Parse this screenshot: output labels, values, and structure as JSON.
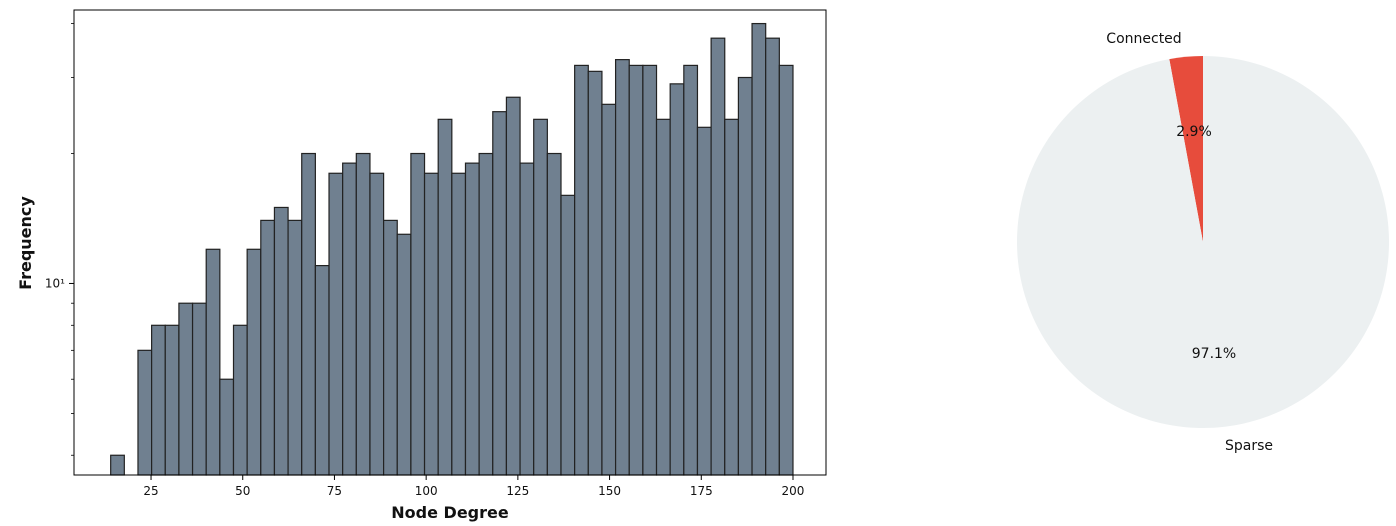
{
  "chart_data": [
    {
      "type": "bar",
      "xlabel": "Node Degree",
      "ylabel": "Frequency",
      "yscale": "log",
      "xlim": [
        4,
        209
      ],
      "ylim": [
        3.6,
        43
      ],
      "xticks": [
        25,
        50,
        75,
        100,
        125,
        150,
        175,
        200
      ],
      "xtick_labels": [
        "25",
        "50",
        "75",
        "100",
        "125",
        "150",
        "175",
        "200"
      ],
      "yticks": [
        10
      ],
      "ytick_labels": [
        "10¹"
      ],
      "bin_start": 14,
      "bin_width": 3.72,
      "values": [
        4,
        3,
        7,
        8,
        8,
        9,
        9,
        12,
        6,
        8,
        12,
        14,
        15,
        14,
        20,
        11,
        18,
        19,
        20,
        18,
        14,
        13,
        20,
        18,
        24,
        18,
        19,
        20,
        25,
        27,
        19,
        24,
        20,
        16,
        32,
        31,
        26,
        33,
        32,
        32,
        24,
        29,
        32,
        23,
        37,
        24,
        30,
        40,
        37,
        32
      ],
      "colors": {
        "bar_fill": "#708090",
        "bar_edge": "#222222"
      }
    },
    {
      "type": "pie",
      "labels": [
        "Connected",
        "Sparse"
      ],
      "values": [
        2.9,
        97.1
      ],
      "pct_labels": [
        "2.9%",
        "97.1%"
      ],
      "start_angle": 90,
      "colors": [
        "#e74c3c",
        "#ecf0f1"
      ]
    }
  ]
}
